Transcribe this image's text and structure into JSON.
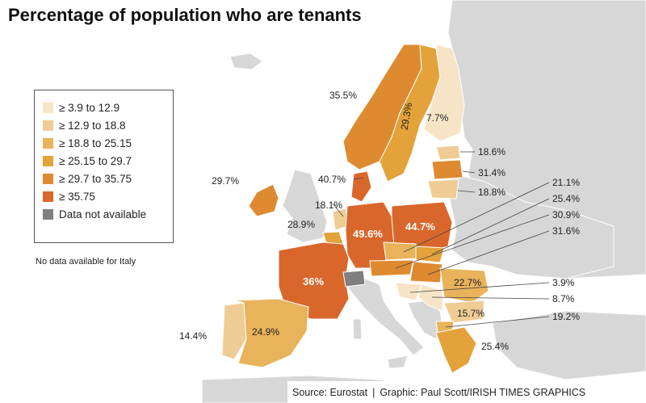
{
  "title": "Percentage of population who are tenants",
  "colors": {
    "sea": "#ffffff",
    "land_other": "#d7d7d7",
    "border": "#ffffff",
    "c1": "#f7e4c6",
    "c2": "#f0cc95",
    "c3": "#e8b35a",
    "c4": "#e3a23a",
    "c5": "#de8a30",
    "c6": "#d9672c",
    "na": "#7f7f7f"
  },
  "legend": {
    "items": [
      {
        "label": "≥ 3.9 to 12.9",
        "color": "#f7e4c6"
      },
      {
        "label": "≥ 12.9 to 18.8",
        "color": "#f0cc95"
      },
      {
        "label": "≥ 18.8 to 25.15",
        "color": "#e8b35a"
      },
      {
        "label": "≥ 25.15 to 29.7",
        "color": "#e3a23a"
      },
      {
        "label": "≥ 29.7 to 35.75",
        "color": "#de8a30"
      },
      {
        "label": "≥ 35.75",
        "color": "#d9672c"
      },
      {
        "label": "Data not available",
        "color": "#7f7f7f"
      }
    ]
  },
  "note": "No data available for Italy",
  "source": {
    "left": "Source: Eurostat",
    "separator": "|",
    "right": "Graphic: Paul Scott/IRISH TIMES GRAPHICS"
  },
  "countries": [
    {
      "name": "Norway",
      "value": "35.5%",
      "color": "#de8a30"
    },
    {
      "name": "Sweden",
      "value": "29.3%",
      "color": "#e3a23a"
    },
    {
      "name": "Finland",
      "value": "7.7%",
      "color": "#f7e4c6"
    },
    {
      "name": "Estonia",
      "value": "18.6%",
      "color": "#f0cc95"
    },
    {
      "name": "Latvia",
      "value": "31.4%",
      "color": "#de8a30"
    },
    {
      "name": "Lithuania",
      "value": "18.8%",
      "color": "#f0cc95"
    },
    {
      "name": "Ireland",
      "value": "29.7%",
      "color": "#de8a30"
    },
    {
      "name": "Denmark",
      "value": "40.7%",
      "color": "#d9672c"
    },
    {
      "name": "Netherlands",
      "value": "18.1%",
      "color": "#f0cc95"
    },
    {
      "name": "Belgium",
      "value": "28.9%",
      "color": "#e3a23a"
    },
    {
      "name": "Germany",
      "value": "49.6%",
      "color": "#d9672c"
    },
    {
      "name": "Poland",
      "value": "44.7%",
      "color": "#d9672c"
    },
    {
      "name": "Czechia",
      "value": "21.1%",
      "color": "#e8b35a"
    },
    {
      "name": "Slovakia",
      "value": "25.4%",
      "color": "#e3a23a"
    },
    {
      "name": "Austria",
      "value": "30.9%",
      "color": "#de8a30"
    },
    {
      "name": "Hungary",
      "value": "31.6%",
      "color": "#de8a30"
    },
    {
      "name": "France",
      "value": "36%",
      "color": "#d9672c"
    },
    {
      "name": "Romania",
      "value": "22.7%",
      "color": "#e8b35a"
    },
    {
      "name": "Croatia",
      "value": "3.9%",
      "color": "#f7e4c6"
    },
    {
      "name": "Serbia",
      "value": "8.7%",
      "color": "#f7e4c6"
    },
    {
      "name": "Bulgaria",
      "value": "15.7%",
      "color": "#f0cc95"
    },
    {
      "name": "North Macedonia",
      "value": "19.2%",
      "color": "#e8b35a"
    },
    {
      "name": "Greece",
      "value": "25.4%",
      "color": "#e3a23a"
    },
    {
      "name": "Portugal",
      "value": "14.4%",
      "color": "#f0cc95"
    },
    {
      "name": "Spain",
      "value": "24.9%",
      "color": "#e8b35a"
    },
    {
      "name": "Switzerland",
      "value": "",
      "color": "#7f7f7f"
    }
  ]
}
